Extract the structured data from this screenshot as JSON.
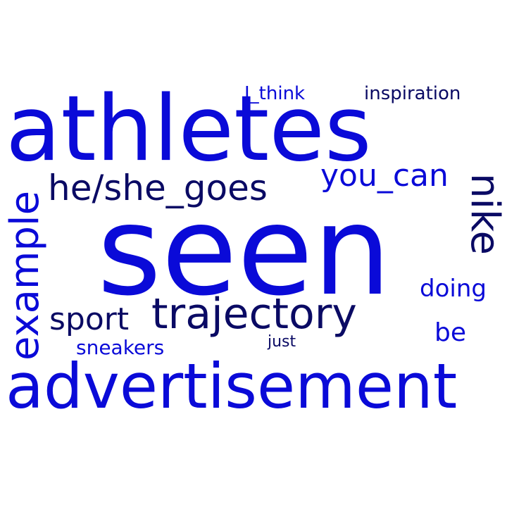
{
  "words": {
    "seen": "seen",
    "athletes": "athletes",
    "advertisement": "advertisement",
    "trajectory": "trajectory",
    "hegoes": "he/she_goes",
    "example": "example",
    "nike": "nike",
    "youcan": "you_can",
    "sport": "sport",
    "doing": "doing",
    "be": "be",
    "sneakers": "sneakers",
    "just": "just",
    "ithink": "I_think",
    "inspiration": "inspiration"
  },
  "colors": {
    "background": "#ffffff",
    "blue": "#0a0ad8",
    "navy": "#0a0a64"
  }
}
